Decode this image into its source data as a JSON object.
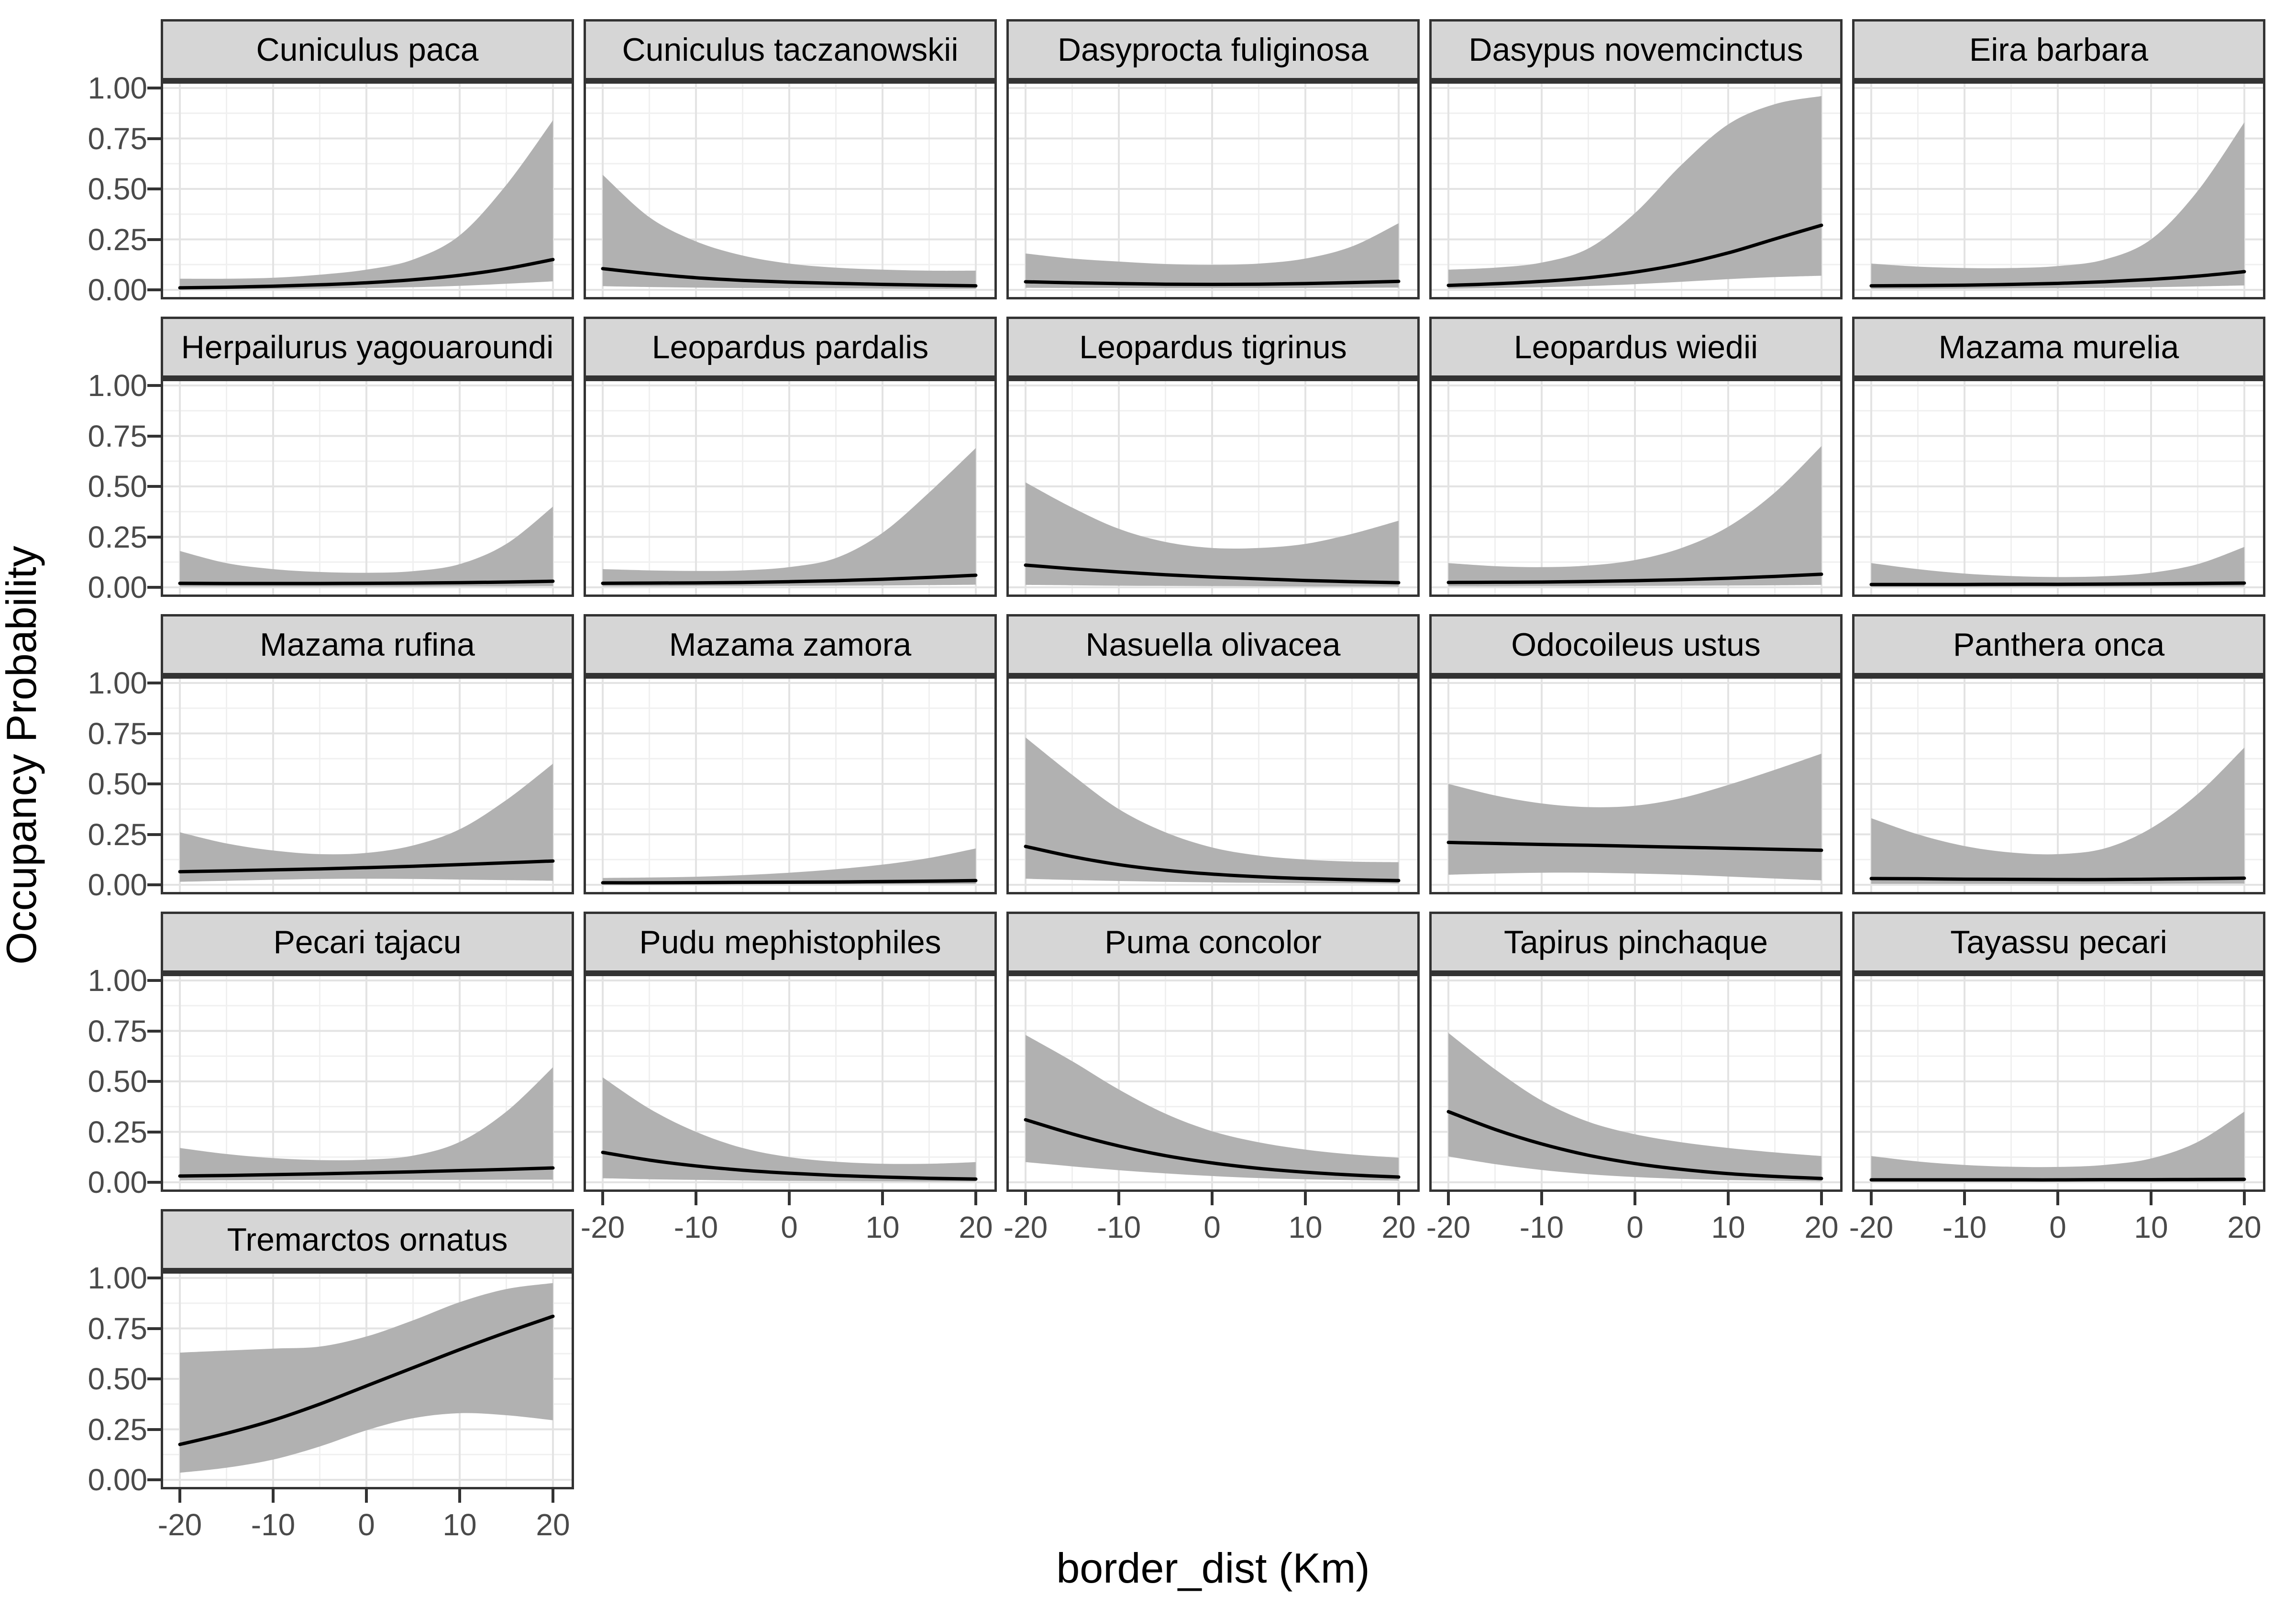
{
  "figure": {
    "x_axis_title": "border_dist (Km)",
    "y_axis_title": "Occupancy Probability"
  },
  "axes": {
    "y_tick_labels": [
      "1.00",
      "0.75",
      "0.50",
      "0.25",
      "0.00"
    ],
    "y_tick_values": [
      1,
      0.75,
      0.5,
      0.25,
      0
    ],
    "x_tick_labels": [
      "-20",
      "-10",
      "0",
      "10",
      "20"
    ],
    "x_tick_values": [
      -20,
      -10,
      0,
      10,
      20
    ]
  },
  "colors": {
    "strip_fill": "#d6d6d6",
    "panel_border": "#333333",
    "grid_major": "#e3e3e3",
    "grid_minor": "#f0f0f0",
    "ribbon": "#b1b1b1",
    "mean_line": "#000000",
    "tick_text": "#4a4a4a",
    "background": "#ffffff"
  },
  "chart_data": {
    "type": "area",
    "title": "",
    "xlabel": "border_dist (Km)",
    "ylabel": "Occupancy Probability",
    "xlim": [
      -20,
      20
    ],
    "ylim": [
      0,
      1
    ],
    "x_ticks": [
      -20,
      -10,
      0,
      10,
      20
    ],
    "y_ticks": [
      0,
      0.25,
      0.5,
      0.75,
      1
    ],
    "grid": "major+minor",
    "legend_position": "none",
    "facet_layout": {
      "columns": 5,
      "rows": 5
    },
    "x": [
      -20,
      -15,
      -10,
      -5,
      0,
      5,
      10,
      15,
      20
    ],
    "facets": [
      {
        "species": "Cuniculus paca",
        "mean": [
          0.01,
          0.013,
          0.018,
          0.025,
          0.035,
          0.05,
          0.072,
          0.105,
          0.15
        ],
        "lower": [
          0.002,
          0.003,
          0.004,
          0.006,
          0.009,
          0.013,
          0.02,
          0.03,
          0.042
        ],
        "upper": [
          0.055,
          0.055,
          0.06,
          0.075,
          0.1,
          0.15,
          0.27,
          0.52,
          0.84
        ]
      },
      {
        "species": "Cuniculus taczanowskii",
        "mean": [
          0.105,
          0.08,
          0.06,
          0.047,
          0.038,
          0.032,
          0.027,
          0.023,
          0.02
        ],
        "lower": [
          0.018,
          0.014,
          0.011,
          0.009,
          0.008,
          0.007,
          0.006,
          0.005,
          0.005
        ],
        "upper": [
          0.57,
          0.36,
          0.24,
          0.17,
          0.13,
          0.11,
          0.1,
          0.095,
          0.095
        ]
      },
      {
        "species": "Dasyprocta fuliginosa",
        "mean": [
          0.04,
          0.035,
          0.031,
          0.028,
          0.027,
          0.028,
          0.031,
          0.036,
          0.042
        ],
        "lower": [
          0.01,
          0.009,
          0.009,
          0.008,
          0.008,
          0.008,
          0.009,
          0.01,
          0.011
        ],
        "upper": [
          0.18,
          0.155,
          0.14,
          0.128,
          0.124,
          0.13,
          0.155,
          0.215,
          0.33
        ]
      },
      {
        "species": "Dasypus novemcinctus",
        "mean": [
          0.022,
          0.03,
          0.042,
          0.06,
          0.088,
          0.128,
          0.183,
          0.252,
          0.32
        ],
        "lower": [
          0.006,
          0.009,
          0.013,
          0.019,
          0.028,
          0.04,
          0.053,
          0.063,
          0.07
        ],
        "upper": [
          0.1,
          0.11,
          0.135,
          0.205,
          0.38,
          0.62,
          0.82,
          0.92,
          0.96
        ]
      },
      {
        "species": "Eira barbara",
        "mean": [
          0.02,
          0.021,
          0.023,
          0.027,
          0.032,
          0.04,
          0.052,
          0.068,
          0.09
        ],
        "lower": [
          0.005,
          0.005,
          0.006,
          0.007,
          0.008,
          0.01,
          0.013,
          0.017,
          0.022
        ],
        "upper": [
          0.13,
          0.115,
          0.108,
          0.108,
          0.118,
          0.15,
          0.25,
          0.49,
          0.83
        ]
      },
      {
        "species": "Herpailurus yagouaroundi",
        "mean": [
          0.02,
          0.019,
          0.019,
          0.019,
          0.02,
          0.021,
          0.023,
          0.026,
          0.03
        ],
        "lower": [
          0.004,
          0.004,
          0.004,
          0.004,
          0.004,
          0.004,
          0.005,
          0.005,
          0.006
        ],
        "upper": [
          0.18,
          0.12,
          0.09,
          0.076,
          0.072,
          0.08,
          0.115,
          0.215,
          0.4
        ]
      },
      {
        "species": "Leopardus pardalis",
        "mean": [
          0.02,
          0.021,
          0.022,
          0.024,
          0.028,
          0.033,
          0.04,
          0.049,
          0.06
        ],
        "lower": [
          0.005,
          0.005,
          0.006,
          0.006,
          0.007,
          0.008,
          0.009,
          0.011,
          0.013
        ],
        "upper": [
          0.09,
          0.084,
          0.081,
          0.084,
          0.1,
          0.145,
          0.27,
          0.47,
          0.69
        ]
      },
      {
        "species": "Leopardus tigrinus",
        "mean": [
          0.11,
          0.092,
          0.076,
          0.062,
          0.051,
          0.042,
          0.034,
          0.028,
          0.023
        ],
        "lower": [
          0.012,
          0.01,
          0.008,
          0.007,
          0.006,
          0.005,
          0.004,
          0.004,
          0.003
        ],
        "upper": [
          0.52,
          0.395,
          0.29,
          0.225,
          0.195,
          0.195,
          0.215,
          0.265,
          0.33
        ]
      },
      {
        "species": "Leopardus wiedii",
        "mean": [
          0.024,
          0.025,
          0.026,
          0.029,
          0.033,
          0.038,
          0.045,
          0.054,
          0.065
        ],
        "lower": [
          0.005,
          0.005,
          0.006,
          0.006,
          0.007,
          0.008,
          0.009,
          0.01,
          0.012
        ],
        "upper": [
          0.12,
          0.105,
          0.1,
          0.108,
          0.135,
          0.195,
          0.3,
          0.47,
          0.7
        ]
      },
      {
        "species": "Mazama murelia",
        "mean": [
          0.014,
          0.014,
          0.014,
          0.015,
          0.015,
          0.016,
          0.017,
          0.019,
          0.021
        ],
        "lower": [
          0.003,
          0.003,
          0.003,
          0.003,
          0.003,
          0.003,
          0.004,
          0.004,
          0.004
        ],
        "upper": [
          0.12,
          0.09,
          0.068,
          0.056,
          0.051,
          0.055,
          0.072,
          0.115,
          0.2
        ]
      },
      {
        "species": "Mazama rufina",
        "mean": [
          0.065,
          0.069,
          0.074,
          0.079,
          0.085,
          0.092,
          0.1,
          0.109,
          0.118
        ],
        "lower": [
          0.015,
          0.02,
          0.025,
          0.029,
          0.03,
          0.029,
          0.026,
          0.023,
          0.02
        ],
        "upper": [
          0.26,
          0.205,
          0.17,
          0.152,
          0.158,
          0.195,
          0.275,
          0.42,
          0.6
        ]
      },
      {
        "species": "Mazama zamora",
        "mean": [
          0.01,
          0.01,
          0.011,
          0.012,
          0.013,
          0.014,
          0.016,
          0.018,
          0.021
        ],
        "lower": [
          0.002,
          0.002,
          0.002,
          0.003,
          0.003,
          0.003,
          0.003,
          0.004,
          0.004
        ],
        "upper": [
          0.034,
          0.036,
          0.04,
          0.048,
          0.06,
          0.077,
          0.1,
          0.133,
          0.18
        ]
      },
      {
        "species": "Nasuella olivacea",
        "mean": [
          0.19,
          0.14,
          0.1,
          0.072,
          0.053,
          0.04,
          0.031,
          0.025,
          0.021
        ],
        "lower": [
          0.03,
          0.024,
          0.019,
          0.015,
          0.012,
          0.01,
          0.008,
          0.007,
          0.006
        ],
        "upper": [
          0.73,
          0.545,
          0.375,
          0.26,
          0.185,
          0.145,
          0.125,
          0.115,
          0.112
        ]
      },
      {
        "species": "Odocoileus ustus",
        "mean": [
          0.21,
          0.205,
          0.2,
          0.196,
          0.191,
          0.186,
          0.181,
          0.176,
          0.171
        ],
        "lower": [
          0.05,
          0.056,
          0.06,
          0.06,
          0.056,
          0.05,
          0.041,
          0.031,
          0.022
        ],
        "upper": [
          0.5,
          0.443,
          0.403,
          0.385,
          0.392,
          0.43,
          0.495,
          0.57,
          0.65
        ]
      },
      {
        "species": "Panthera onca",
        "mean": [
          0.031,
          0.03,
          0.028,
          0.027,
          0.026,
          0.026,
          0.028,
          0.03,
          0.033
        ],
        "lower": [
          0.005,
          0.005,
          0.005,
          0.005,
          0.005,
          0.005,
          0.005,
          0.006,
          0.006
        ],
        "upper": [
          0.33,
          0.25,
          0.192,
          0.16,
          0.152,
          0.18,
          0.28,
          0.45,
          0.68
        ]
      },
      {
        "species": "Pecari tajacu",
        "mean": [
          0.031,
          0.034,
          0.038,
          0.042,
          0.047,
          0.052,
          0.058,
          0.064,
          0.071
        ],
        "lower": [
          0.009,
          0.01,
          0.011,
          0.012,
          0.012,
          0.012,
          0.012,
          0.013,
          0.013
        ],
        "upper": [
          0.17,
          0.14,
          0.12,
          0.11,
          0.112,
          0.132,
          0.2,
          0.35,
          0.57
        ]
      },
      {
        "species": "Pudu mephistophiles",
        "mean": [
          0.148,
          0.11,
          0.081,
          0.06,
          0.045,
          0.034,
          0.026,
          0.02,
          0.016
        ],
        "lower": [
          0.02,
          0.015,
          0.012,
          0.009,
          0.007,
          0.006,
          0.005,
          0.004,
          0.004
        ],
        "upper": [
          0.52,
          0.365,
          0.25,
          0.17,
          0.125,
          0.102,
          0.092,
          0.092,
          0.1
        ]
      },
      {
        "species": "Puma concolor",
        "mean": [
          0.31,
          0.24,
          0.18,
          0.132,
          0.096,
          0.069,
          0.05,
          0.036,
          0.026
        ],
        "lower": [
          0.1,
          0.079,
          0.06,
          0.044,
          0.031,
          0.021,
          0.015,
          0.011,
          0.008
        ],
        "upper": [
          0.73,
          0.6,
          0.46,
          0.34,
          0.253,
          0.198,
          0.162,
          0.138,
          0.122
        ]
      },
      {
        "species": "Tapirus pinchaque",
        "mean": [
          0.35,
          0.262,
          0.19,
          0.134,
          0.093,
          0.064,
          0.043,
          0.029,
          0.019
        ],
        "lower": [
          0.128,
          0.09,
          0.061,
          0.04,
          0.026,
          0.017,
          0.011,
          0.008,
          0.005
        ],
        "upper": [
          0.74,
          0.56,
          0.405,
          0.3,
          0.238,
          0.198,
          0.17,
          0.148,
          0.13
        ]
      },
      {
        "species": "Tayassu pecari",
        "mean": [
          0.012,
          0.012,
          0.012,
          0.012,
          0.012,
          0.013,
          0.013,
          0.014,
          0.015
        ],
        "lower": [
          0.003,
          0.003,
          0.003,
          0.003,
          0.003,
          0.003,
          0.003,
          0.003,
          0.003
        ],
        "upper": [
          0.13,
          0.103,
          0.086,
          0.077,
          0.076,
          0.086,
          0.118,
          0.2,
          0.35
        ]
      },
      {
        "species": "Tremarctos ornatus",
        "mean": [
          0.175,
          0.23,
          0.295,
          0.375,
          0.465,
          0.555,
          0.645,
          0.73,
          0.81
        ],
        "lower": [
          0.035,
          0.06,
          0.1,
          0.165,
          0.245,
          0.305,
          0.33,
          0.32,
          0.295
        ],
        "upper": [
          0.63,
          0.64,
          0.65,
          0.66,
          0.71,
          0.79,
          0.88,
          0.945,
          0.975
        ]
      }
    ]
  }
}
